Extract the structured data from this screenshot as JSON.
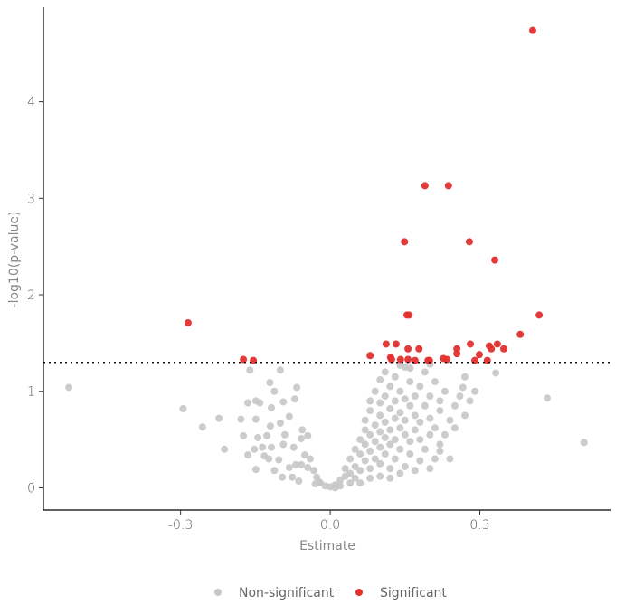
{
  "chart_data": {
    "type": "scatter",
    "title": "",
    "xlabel": "Estimate",
    "ylabel": "-log10(p-value)",
    "xlim": [
      -0.575,
      0.562
    ],
    "ylim": [
      -0.23,
      4.98
    ],
    "xticks": [
      -0.3,
      0.0,
      0.3
    ],
    "xtick_labels": [
      "-0.3",
      "0.0",
      "0.3"
    ],
    "yticks": [
      0,
      1,
      2,
      3,
      4
    ],
    "ytick_labels": [
      "0",
      "1",
      "2",
      "3",
      "4"
    ],
    "threshold": 1.3,
    "grid": false,
    "legend_position": "bottom",
    "colors": {
      "Non-significant": "#c8c6c6",
      "Significant": "#e2302f"
    },
    "series": [
      {
        "name": "Non-significant",
        "points": [
          [
            -0.524,
            1.04
          ],
          [
            -0.295,
            0.82
          ],
          [
            -0.256,
            0.63
          ],
          [
            -0.223,
            0.72
          ],
          [
            -0.212,
            0.4
          ],
          [
            0.435,
            0.93
          ],
          [
            0.509,
            0.47
          ],
          [
            -0.161,
            1.22
          ],
          [
            -0.1,
            1.22
          ],
          [
            0.332,
            1.19
          ],
          [
            0.266,
            1.04
          ],
          [
            -0.121,
            1.09
          ],
          [
            -0.112,
            1.0
          ],
          [
            -0.067,
            1.04
          ],
          [
            -0.165,
            0.88
          ],
          [
            -0.149,
            0.9
          ],
          [
            -0.141,
            0.88
          ],
          [
            -0.094,
            0.89
          ],
          [
            -0.071,
            0.92
          ],
          [
            -0.118,
            0.83
          ],
          [
            -0.179,
            0.71
          ],
          [
            -0.149,
            0.71
          ],
          [
            -0.082,
            0.74
          ],
          [
            -0.1,
            0.67
          ],
          [
            -0.12,
            0.64
          ],
          [
            -0.174,
            0.54
          ],
          [
            -0.127,
            0.54
          ],
          [
            -0.145,
            0.52
          ],
          [
            -0.091,
            0.55
          ],
          [
            -0.056,
            0.6
          ],
          [
            -0.045,
            0.54
          ],
          [
            -0.058,
            0.51
          ],
          [
            -0.152,
            0.4
          ],
          [
            -0.136,
            0.42
          ],
          [
            -0.118,
            0.42
          ],
          [
            -0.094,
            0.45
          ],
          [
            -0.073,
            0.42
          ],
          [
            -0.165,
            0.34
          ],
          [
            -0.132,
            0.33
          ],
          [
            -0.123,
            0.3
          ],
          [
            -0.103,
            0.29
          ],
          [
            -0.149,
            0.19
          ],
          [
            -0.112,
            0.18
          ],
          [
            -0.096,
            0.11
          ],
          [
            -0.076,
            0.11
          ],
          [
            -0.063,
            0.07
          ],
          [
            -0.058,
            0.24
          ],
          [
            -0.051,
            0.34
          ],
          [
            -0.04,
            0.3
          ],
          [
            -0.033,
            0.18
          ],
          [
            -0.027,
            0.11
          ],
          [
            -0.022,
            0.06
          ],
          [
            -0.082,
            0.21
          ],
          [
            -0.069,
            0.24
          ],
          [
            -0.045,
            0.21
          ],
          [
            0.01,
            0.03
          ],
          [
            0.02,
            0.08
          ],
          [
            0.03,
            0.12
          ],
          [
            0.03,
            0.2
          ],
          [
            0.04,
            0.15
          ],
          [
            0.04,
            0.3
          ],
          [
            0.05,
            0.22
          ],
          [
            0.05,
            0.4
          ],
          [
            0.05,
            0.1
          ],
          [
            0.06,
            0.35
          ],
          [
            0.06,
            0.5
          ],
          [
            0.06,
            0.18
          ],
          [
            0.07,
            0.28
          ],
          [
            0.07,
            0.45
          ],
          [
            0.07,
            0.6
          ],
          [
            0.07,
            0.7
          ],
          [
            0.08,
            0.2
          ],
          [
            0.08,
            0.38
          ],
          [
            0.08,
            0.55
          ],
          [
            0.08,
            0.8
          ],
          [
            0.08,
            0.9
          ],
          [
            0.09,
            0.3
          ],
          [
            0.09,
            0.48
          ],
          [
            0.09,
            0.65
          ],
          [
            0.09,
            1.0
          ],
          [
            0.1,
            0.25
          ],
          [
            0.1,
            0.42
          ],
          [
            0.1,
            0.58
          ],
          [
            0.1,
            0.75
          ],
          [
            0.1,
            0.88
          ],
          [
            0.1,
            1.12
          ],
          [
            0.11,
            0.35
          ],
          [
            0.11,
            0.52
          ],
          [
            0.11,
            0.68
          ],
          [
            0.11,
            0.95
          ],
          [
            0.11,
            1.2
          ],
          [
            0.12,
            0.2
          ],
          [
            0.12,
            0.45
          ],
          [
            0.12,
            0.6
          ],
          [
            0.12,
            0.82
          ],
          [
            0.12,
            1.05
          ],
          [
            0.13,
            0.3
          ],
          [
            0.13,
            0.5
          ],
          [
            0.13,
            0.72
          ],
          [
            0.13,
            0.9
          ],
          [
            0.13,
            1.15
          ],
          [
            0.14,
            0.4
          ],
          [
            0.14,
            0.62
          ],
          [
            0.14,
            0.78
          ],
          [
            0.14,
            1.0
          ],
          [
            0.15,
            0.22
          ],
          [
            0.15,
            0.55
          ],
          [
            0.15,
            0.7
          ],
          [
            0.15,
            0.92
          ],
          [
            0.15,
            1.25
          ],
          [
            0.16,
            0.35
          ],
          [
            0.16,
            0.48
          ],
          [
            0.16,
            0.85
          ],
          [
            0.16,
            1.1
          ],
          [
            0.17,
            0.6
          ],
          [
            0.17,
            0.75
          ],
          [
            0.17,
            0.95
          ],
          [
            0.18,
            0.28
          ],
          [
            0.18,
            0.5
          ],
          [
            0.18,
            0.68
          ],
          [
            0.18,
            1.05
          ],
          [
            0.19,
            0.4
          ],
          [
            0.19,
            0.85
          ],
          [
            0.19,
            1.2
          ],
          [
            0.2,
            0.55
          ],
          [
            0.2,
            0.72
          ],
          [
            0.2,
            0.95
          ],
          [
            0.21,
            0.3
          ],
          [
            0.21,
            0.62
          ],
          [
            0.21,
            1.1
          ],
          [
            0.22,
            0.45
          ],
          [
            0.22,
            0.8
          ],
          [
            0.22,
            0.9
          ],
          [
            0.23,
            0.55
          ],
          [
            0.23,
            1.0
          ],
          [
            0.24,
            0.3
          ],
          [
            0.24,
            0.7
          ],
          [
            0.25,
            0.85
          ],
          [
            0.25,
            0.62
          ],
          [
            0.26,
            0.95
          ],
          [
            0.27,
            0.75
          ],
          [
            0.27,
            1.15
          ],
          [
            0.28,
            0.9
          ],
          [
            0.29,
            1.0
          ],
          [
            0.22,
            0.38
          ],
          [
            0.2,
            0.2
          ],
          [
            0.17,
            0.18
          ],
          [
            0.14,
            0.15
          ],
          [
            0.12,
            0.1
          ],
          [
            0.1,
            0.12
          ],
          [
            0.08,
            0.1
          ],
          [
            0.06,
            0.05
          ],
          [
            0.04,
            0.05
          ],
          [
            0.02,
            0.02
          ],
          [
            0.0,
            0.01
          ],
          [
            -0.01,
            0.02
          ],
          [
            -0.02,
            0.05
          ],
          [
            -0.03,
            0.04
          ],
          [
            0.01,
            0.0
          ],
          [
            0.14,
            1.27
          ],
          [
            0.2,
            1.28
          ],
          [
            0.16,
            1.24
          ]
        ]
      },
      {
        "name": "Significant",
        "points": [
          [
            0.406,
            4.74
          ],
          [
            0.19,
            3.13
          ],
          [
            0.237,
            3.13
          ],
          [
            0.149,
            2.55
          ],
          [
            0.279,
            2.55
          ],
          [
            0.33,
            2.36
          ],
          [
            0.154,
            1.79
          ],
          [
            0.158,
            1.79
          ],
          [
            0.419,
            1.79
          ],
          [
            -0.285,
            1.71
          ],
          [
            0.381,
            1.59
          ],
          [
            -0.174,
            1.33
          ],
          [
            -0.154,
            1.32
          ],
          [
            0.08,
            1.37
          ],
          [
            0.112,
            1.49
          ],
          [
            0.132,
            1.49
          ],
          [
            0.156,
            1.44
          ],
          [
            0.178,
            1.44
          ],
          [
            0.121,
            1.35
          ],
          [
            0.123,
            1.33
          ],
          [
            0.141,
            1.33
          ],
          [
            0.156,
            1.33
          ],
          [
            0.17,
            1.32
          ],
          [
            0.196,
            1.32
          ],
          [
            0.199,
            1.32
          ],
          [
            0.227,
            1.34
          ],
          [
            0.234,
            1.33
          ],
          [
            0.254,
            1.44
          ],
          [
            0.254,
            1.39
          ],
          [
            0.281,
            1.49
          ],
          [
            0.299,
            1.38
          ],
          [
            0.29,
            1.32
          ],
          [
            0.315,
            1.32
          ],
          [
            0.319,
            1.47
          ],
          [
            0.323,
            1.44
          ],
          [
            0.335,
            1.49
          ],
          [
            0.348,
            1.44
          ]
        ]
      }
    ]
  }
}
